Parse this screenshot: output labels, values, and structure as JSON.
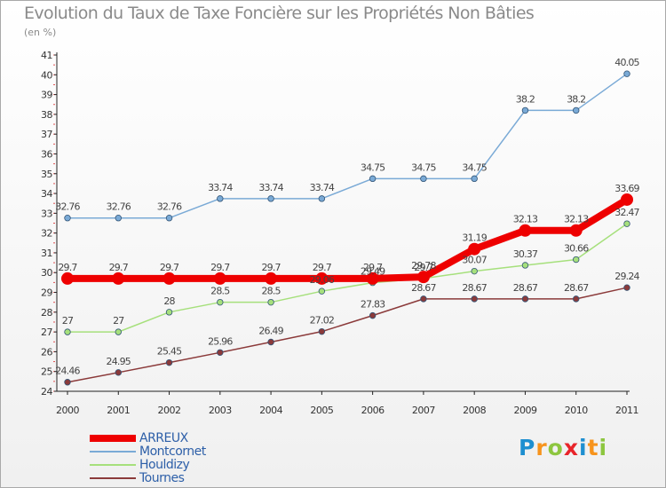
{
  "title": "Evolution du Taux de Taxe Foncière sur les Propriétés Non Bâties",
  "subtitle": "(en %)",
  "logo": {
    "letters": [
      {
        "char": "P",
        "color": "#1e8fd0"
      },
      {
        "char": "r",
        "color": "#f7941d"
      },
      {
        "char": "o",
        "color": "#8dc63f"
      },
      {
        "char": "x",
        "color": "#e8242a"
      },
      {
        "char": "i",
        "color": "#1e8fd0"
      },
      {
        "char": "t",
        "color": "#f7941d"
      },
      {
        "char": "i",
        "color": "#8dc63f"
      }
    ]
  },
  "chart_data": {
    "type": "line",
    "x": [
      "2000",
      "2001",
      "2002",
      "2003",
      "2004",
      "2005",
      "2006",
      "2007",
      "2008",
      "2009",
      "2010",
      "2011"
    ],
    "ylim": [
      24,
      41
    ],
    "yticks": [
      "24",
      "25",
      "26",
      "27",
      "28",
      "29",
      "30",
      "31",
      "32",
      "33",
      "34",
      "35",
      "36",
      "37",
      "38",
      "39",
      "40",
      "41"
    ],
    "grid": false,
    "legend_position": "bottom-left",
    "series": [
      {
        "name": "ARREUX",
        "color": "#ee0000",
        "values": [
          29.7,
          29.7,
          29.7,
          29.7,
          29.7,
          29.7,
          29.7,
          29.78,
          31.19,
          32.13,
          32.13,
          33.69
        ],
        "labels": [
          "29.7",
          "29.7",
          "29.7",
          "29.7",
          "29.7",
          "29.7",
          "29.7",
          "29.78",
          "31.19",
          "32.13",
          "32.13",
          "33.69"
        ]
      },
      {
        "name": "Montcornet",
        "color": "#7aaad6",
        "values": [
          32.76,
          32.76,
          32.76,
          33.74,
          33.74,
          33.74,
          34.75,
          34.75,
          34.75,
          38.2,
          38.2,
          40.05
        ],
        "labels": [
          "32.76",
          "32.76",
          "32.76",
          "33.74",
          "33.74",
          "33.74",
          "34.75",
          "34.75",
          "34.75",
          "38.2",
          "38.2",
          "40.05"
        ]
      },
      {
        "name": "Houldizy",
        "color": "#a6e07c",
        "values": [
          27,
          27,
          28,
          28.5,
          28.5,
          29.06,
          29.49,
          29.7,
          30.07,
          30.37,
          30.66,
          32.47
        ],
        "labels": [
          "27",
          "27",
          "28",
          "28.5",
          "28.5",
          "29.06",
          "29.49",
          "29.7",
          "30.07",
          "30.37",
          "30.66",
          "32.47"
        ]
      },
      {
        "name": "Tournes",
        "color": "#8b3a3a",
        "values": [
          24.46,
          24.95,
          25.45,
          25.96,
          26.49,
          27.02,
          27.83,
          28.67,
          28.67,
          28.67,
          28.67,
          29.24
        ],
        "labels": [
          "24.46",
          "24.95",
          "25.45",
          "25.96",
          "26.49",
          "27.02",
          "27.83",
          "28.67",
          "28.67",
          "28.67",
          "28.67",
          "29.24"
        ]
      }
    ]
  }
}
